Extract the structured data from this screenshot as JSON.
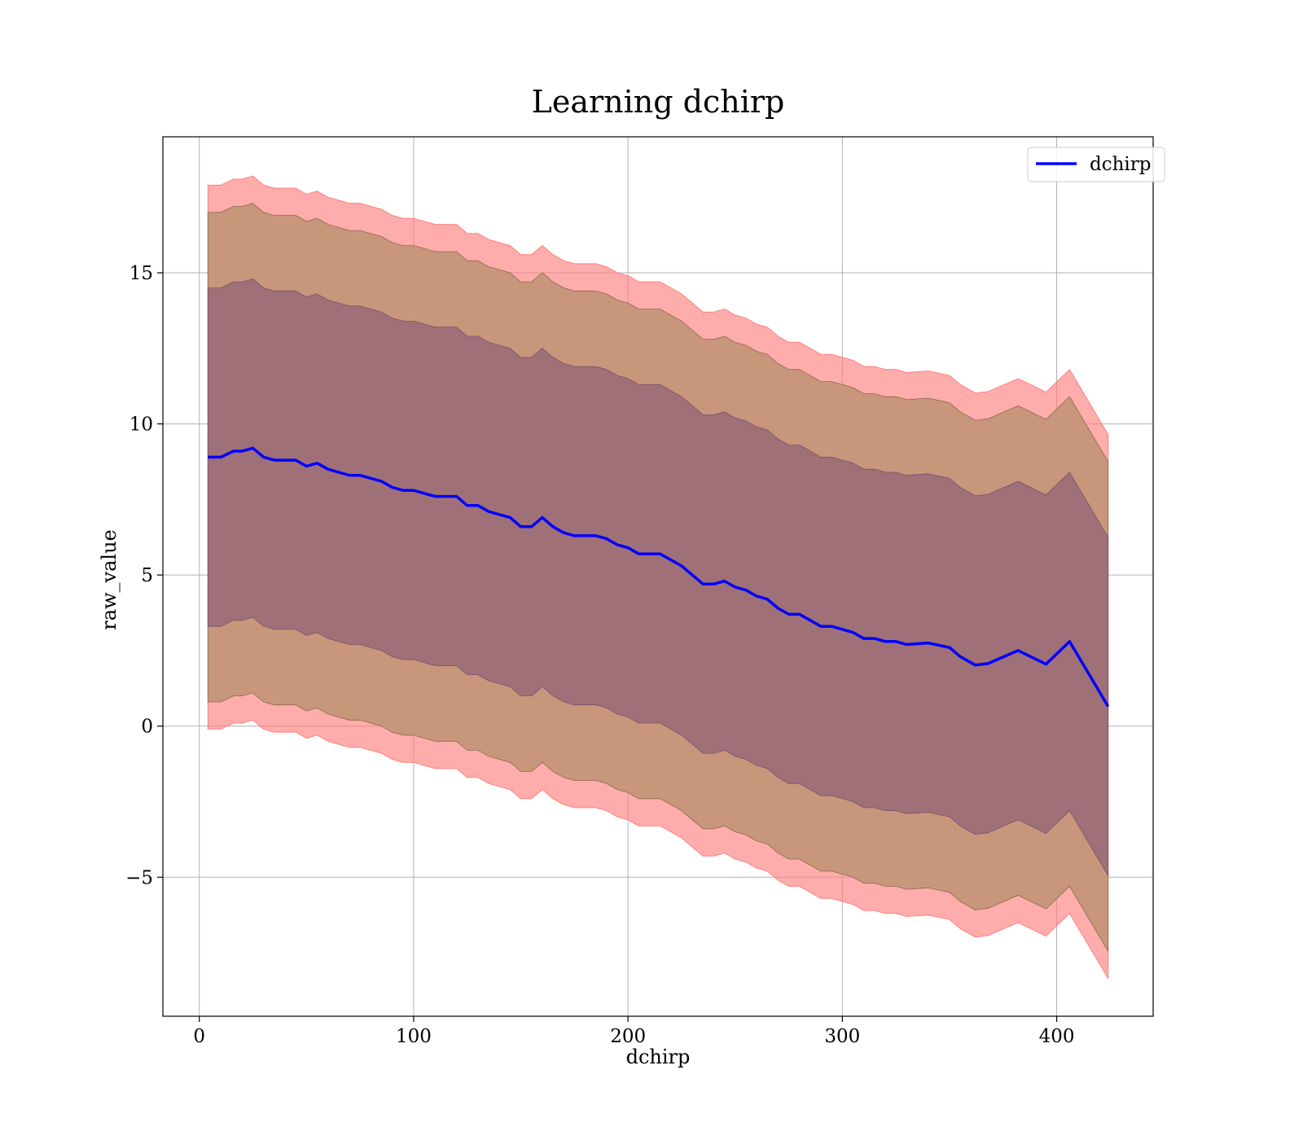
{
  "chart_data": {
    "type": "line",
    "title": "Learning dchirp",
    "xlabel": "dchirp",
    "ylabel": "raw_value",
    "xlim": [
      -17,
      445
    ],
    "ylim": [
      -9.6,
      19.5
    ],
    "x_ticks": [
      0,
      100,
      200,
      300,
      400
    ],
    "x_tick_labels": [
      "0",
      "100",
      "200",
      "300",
      "400"
    ],
    "y_ticks": [
      -5,
      0,
      5,
      10,
      15
    ],
    "y_tick_labels": [
      "−5",
      "0",
      "5",
      "10",
      "15"
    ],
    "grid": true,
    "legend": {
      "placement": "top-right",
      "entries": [
        "dchirp"
      ]
    },
    "colors": {
      "mean_line": "#0000ff",
      "band_outer": "#ff8080",
      "band_middle": "#c8967a",
      "band_inner": "#a07078",
      "grid": "#b0b0b0"
    },
    "series": [
      {
        "name": "dchirp",
        "x": [
          4,
          10,
          16,
          20,
          25,
          30,
          35,
          40,
          45,
          50,
          55,
          60,
          65,
          70,
          75,
          80,
          85,
          90,
          95,
          100,
          105,
          110,
          115,
          120,
          125,
          130,
          135,
          140,
          145,
          150,
          155,
          160,
          165,
          170,
          175,
          180,
          185,
          190,
          195,
          200,
          205,
          210,
          215,
          220,
          225,
          230,
          235,
          240,
          245,
          250,
          255,
          260,
          265,
          270,
          275,
          280,
          285,
          290,
          295,
          300,
          305,
          310,
          315,
          320,
          325,
          330,
          340,
          350,
          355,
          362,
          368,
          382,
          395,
          406,
          424
        ],
        "mean": [
          8.9,
          8.9,
          9.1,
          9.1,
          9.2,
          8.9,
          8.8,
          8.8,
          8.8,
          8.6,
          8.7,
          8.5,
          8.4,
          8.3,
          8.3,
          8.2,
          8.1,
          7.9,
          7.8,
          7.8,
          7.7,
          7.6,
          7.6,
          7.6,
          7.3,
          7.3,
          7.1,
          7.0,
          6.9,
          6.6,
          6.6,
          6.9,
          6.6,
          6.4,
          6.3,
          6.3,
          6.3,
          6.2,
          6.0,
          5.9,
          5.7,
          5.7,
          5.7,
          5.5,
          5.3,
          5.0,
          4.7,
          4.7,
          4.8,
          4.6,
          4.5,
          4.3,
          4.2,
          3.9,
          3.7,
          3.7,
          3.5,
          3.3,
          3.3,
          3.2,
          3.1,
          2.9,
          2.9,
          2.8,
          2.8,
          2.7,
          2.75,
          2.6,
          2.3,
          2.02,
          2.07,
          2.5,
          2.05,
          2.8,
          0.65
        ],
        "band_outer_width": 9.0,
        "band_middle_width": 8.1,
        "band_inner_width": 5.6
      }
    ]
  }
}
